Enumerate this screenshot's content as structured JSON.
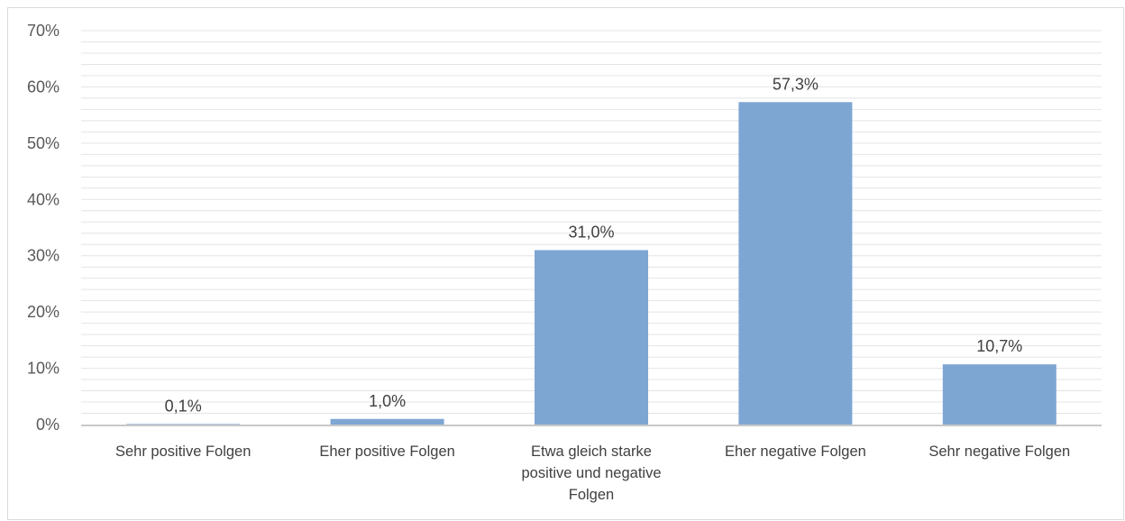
{
  "chart_data": {
    "type": "bar",
    "categories": [
      [
        "Sehr positive Folgen"
      ],
      [
        "Eher positive Folgen"
      ],
      [
        "Etwa gleich starke",
        "positive und negative",
        "Folgen"
      ],
      [
        "Eher negative Folgen"
      ],
      [
        "Sehr negative Folgen"
      ]
    ],
    "values": [
      0.1,
      1.0,
      31.0,
      57.3,
      10.7
    ],
    "value_labels": [
      "0,1%",
      "1,0%",
      "31,0%",
      "57,3%",
      "10,7%"
    ],
    "y_ticks": [
      "0%",
      "10%",
      "20%",
      "30%",
      "40%",
      "50%",
      "60%",
      "70%"
    ],
    "ylim": [
      0,
      70
    ],
    "title": "",
    "xlabel": "",
    "ylabel": "",
    "grid": true,
    "bar_color": "#7ea6d3",
    "grid_color": "#e4e4e4",
    "axis_color": "#c8c8c8"
  }
}
